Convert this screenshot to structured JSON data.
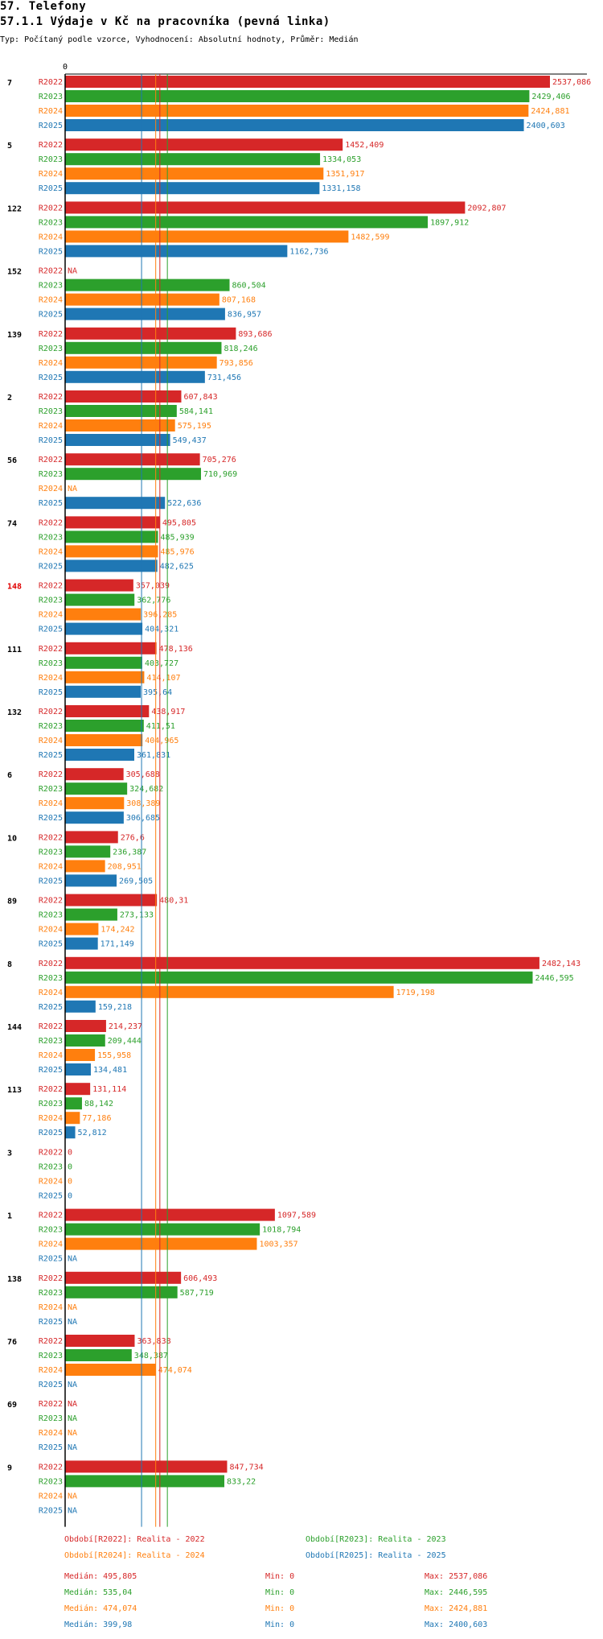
{
  "header": {
    "section": "57. Telefony",
    "title": "57.1.1 Výdaje v Kč na pracovníka (pevná linka)",
    "subtitle": "Typ: Počítaný podle vzorce, Vyhodnocení: Absolutní hodnoty, Průměr: Medián"
  },
  "colors": {
    "R2022": "#d62728",
    "R2023": "#2ca02c",
    "R2024": "#ff7f0e",
    "R2025": "#1f77b4",
    "highlight": "#e00000"
  },
  "chart_data": {
    "type": "bar",
    "orientation": "horizontal",
    "axis_zero_label": "0",
    "xlim": [
      0,
      2537.086
    ],
    "series": [
      "R2022",
      "R2023",
      "R2024",
      "R2025"
    ],
    "reference_lines": [
      {
        "series": "R2025",
        "label": "Medián",
        "value": 399.98
      },
      {
        "series": "R2022",
        "label": "Medián",
        "value": 495.805
      },
      {
        "series": "R2024",
        "label": "Medián",
        "value": 474.074
      },
      {
        "series": "R2023",
        "label": "Medián",
        "value": 535.04
      }
    ],
    "groups": [
      {
        "id": "7",
        "highlight": false,
        "values": [
          2537.086,
          2429.406,
          2424.881,
          2400.603
        ],
        "labels": [
          "2537,086",
          "2429,406",
          "2424,881",
          "2400,603"
        ]
      },
      {
        "id": "5",
        "highlight": false,
        "values": [
          1452.409,
          1334.053,
          1351.917,
          1331.158
        ],
        "labels": [
          "1452,409",
          "1334,053",
          "1351,917",
          "1331,158"
        ]
      },
      {
        "id": "122",
        "highlight": false,
        "values": [
          2092.807,
          1897.912,
          1482.599,
          1162.736
        ],
        "labels": [
          "2092,807",
          "1897,912",
          "1482,599",
          "1162,736"
        ]
      },
      {
        "id": "152",
        "highlight": false,
        "values": [
          null,
          860.504,
          807.168,
          836.957
        ],
        "labels": [
          "NA",
          "860,504",
          "807,168",
          "836,957"
        ]
      },
      {
        "id": "139",
        "highlight": false,
        "values": [
          893.686,
          818.246,
          793.856,
          731.456
        ],
        "labels": [
          "893,686",
          "818,246",
          "793,856",
          "731,456"
        ]
      },
      {
        "id": "2",
        "highlight": false,
        "values": [
          607.843,
          584.141,
          575.195,
          549.437
        ],
        "labels": [
          "607,843",
          "584,141",
          "575,195",
          "549,437"
        ]
      },
      {
        "id": "56",
        "highlight": false,
        "values": [
          705.276,
          710.969,
          null,
          522.636
        ],
        "labels": [
          "705,276",
          "710,969",
          "NA",
          "522,636"
        ]
      },
      {
        "id": "74",
        "highlight": false,
        "values": [
          495.805,
          485.939,
          485.976,
          482.625
        ],
        "labels": [
          "495,805",
          "485,939",
          "485,976",
          "482,625"
        ]
      },
      {
        "id": "148",
        "highlight": true,
        "values": [
          357.039,
          362.776,
          396.285,
          404.321
        ],
        "labels": [
          "357,039",
          "362,776",
          "396,285",
          "404,321"
        ]
      },
      {
        "id": "111",
        "highlight": false,
        "values": [
          478.136,
          403.727,
          414.107,
          395.64
        ],
        "labels": [
          "478,136",
          "403,727",
          "414,107",
          "395,64"
        ]
      },
      {
        "id": "132",
        "highlight": false,
        "values": [
          438.917,
          411.51,
          404.965,
          361.831
        ],
        "labels": [
          "438,917",
          "411,51",
          "404,965",
          "361,831"
        ]
      },
      {
        "id": "6",
        "highlight": false,
        "values": [
          305.688,
          324.682,
          308.389,
          306.685
        ],
        "labels": [
          "305,688",
          "324,682",
          "308,389",
          "306,685"
        ]
      },
      {
        "id": "10",
        "highlight": false,
        "values": [
          276.6,
          236.387,
          208.951,
          269.505
        ],
        "labels": [
          "276,6",
          "236,387",
          "208,951",
          "269,505"
        ]
      },
      {
        "id": "89",
        "highlight": false,
        "values": [
          480.31,
          273.133,
          174.242,
          171.149
        ],
        "labels": [
          "480,31",
          "273,133",
          "174,242",
          "171,149"
        ]
      },
      {
        "id": "8",
        "highlight": false,
        "values": [
          2482.143,
          2446.595,
          1719.198,
          159.218
        ],
        "labels": [
          "2482,143",
          "2446,595",
          "1719,198",
          "159,218"
        ]
      },
      {
        "id": "144",
        "highlight": false,
        "values": [
          214.237,
          209.444,
          155.958,
          134.481
        ],
        "labels": [
          "214,237",
          "209,444",
          "155,958",
          "134,481"
        ]
      },
      {
        "id": "113",
        "highlight": false,
        "values": [
          131.114,
          88.142,
          77.186,
          52.812
        ],
        "labels": [
          "131,114",
          "88,142",
          "77,186",
          "52,812"
        ]
      },
      {
        "id": "3",
        "highlight": false,
        "values": [
          0,
          0,
          0,
          0
        ],
        "labels": [
          "0",
          "0",
          "0",
          "0"
        ]
      },
      {
        "id": "1",
        "highlight": false,
        "values": [
          1097.589,
          1018.794,
          1003.357,
          null
        ],
        "labels": [
          "1097,589",
          "1018,794",
          "1003,357",
          "NA"
        ]
      },
      {
        "id": "138",
        "highlight": false,
        "values": [
          606.493,
          587.719,
          null,
          null
        ],
        "labels": [
          "606,493",
          "587,719",
          "NA",
          "NA"
        ]
      },
      {
        "id": "76",
        "highlight": false,
        "values": [
          363.838,
          348.387,
          474.074,
          null
        ],
        "labels": [
          "363,838",
          "348,387",
          "474,074",
          "NA"
        ]
      },
      {
        "id": "69",
        "highlight": false,
        "values": [
          null,
          null,
          null,
          null
        ],
        "labels": [
          "NA",
          "NA",
          "NA",
          "NA"
        ]
      },
      {
        "id": "9",
        "highlight": false,
        "values": [
          847.734,
          833.22,
          null,
          null
        ],
        "labels": [
          "847,734",
          "833,22",
          "NA",
          "NA"
        ]
      }
    ]
  },
  "legend": [
    {
      "series": "R2022",
      "text": "Období[R2022]: Realita - 2022"
    },
    {
      "series": "R2023",
      "text": "Období[R2023]: Realita - 2023"
    },
    {
      "series": "R2024",
      "text": "Období[R2024]: Realita - 2024"
    },
    {
      "series": "R2025",
      "text": "Období[R2025]: Realita - 2025"
    }
  ],
  "stats": [
    {
      "series": "R2022",
      "median": "Medián: 495,805",
      "min": "Min: 0",
      "max": "Max: 2537,086"
    },
    {
      "series": "R2023",
      "median": "Medián: 535,04",
      "min": "Min: 0",
      "max": "Max: 2446,595"
    },
    {
      "series": "R2024",
      "median": "Medián: 474,074",
      "min": "Min: 0",
      "max": "Max: 2424,881"
    },
    {
      "series": "R2025",
      "median": "Medián: 399,98",
      "min": "Min: 0",
      "max": "Max: 2400,603"
    }
  ]
}
